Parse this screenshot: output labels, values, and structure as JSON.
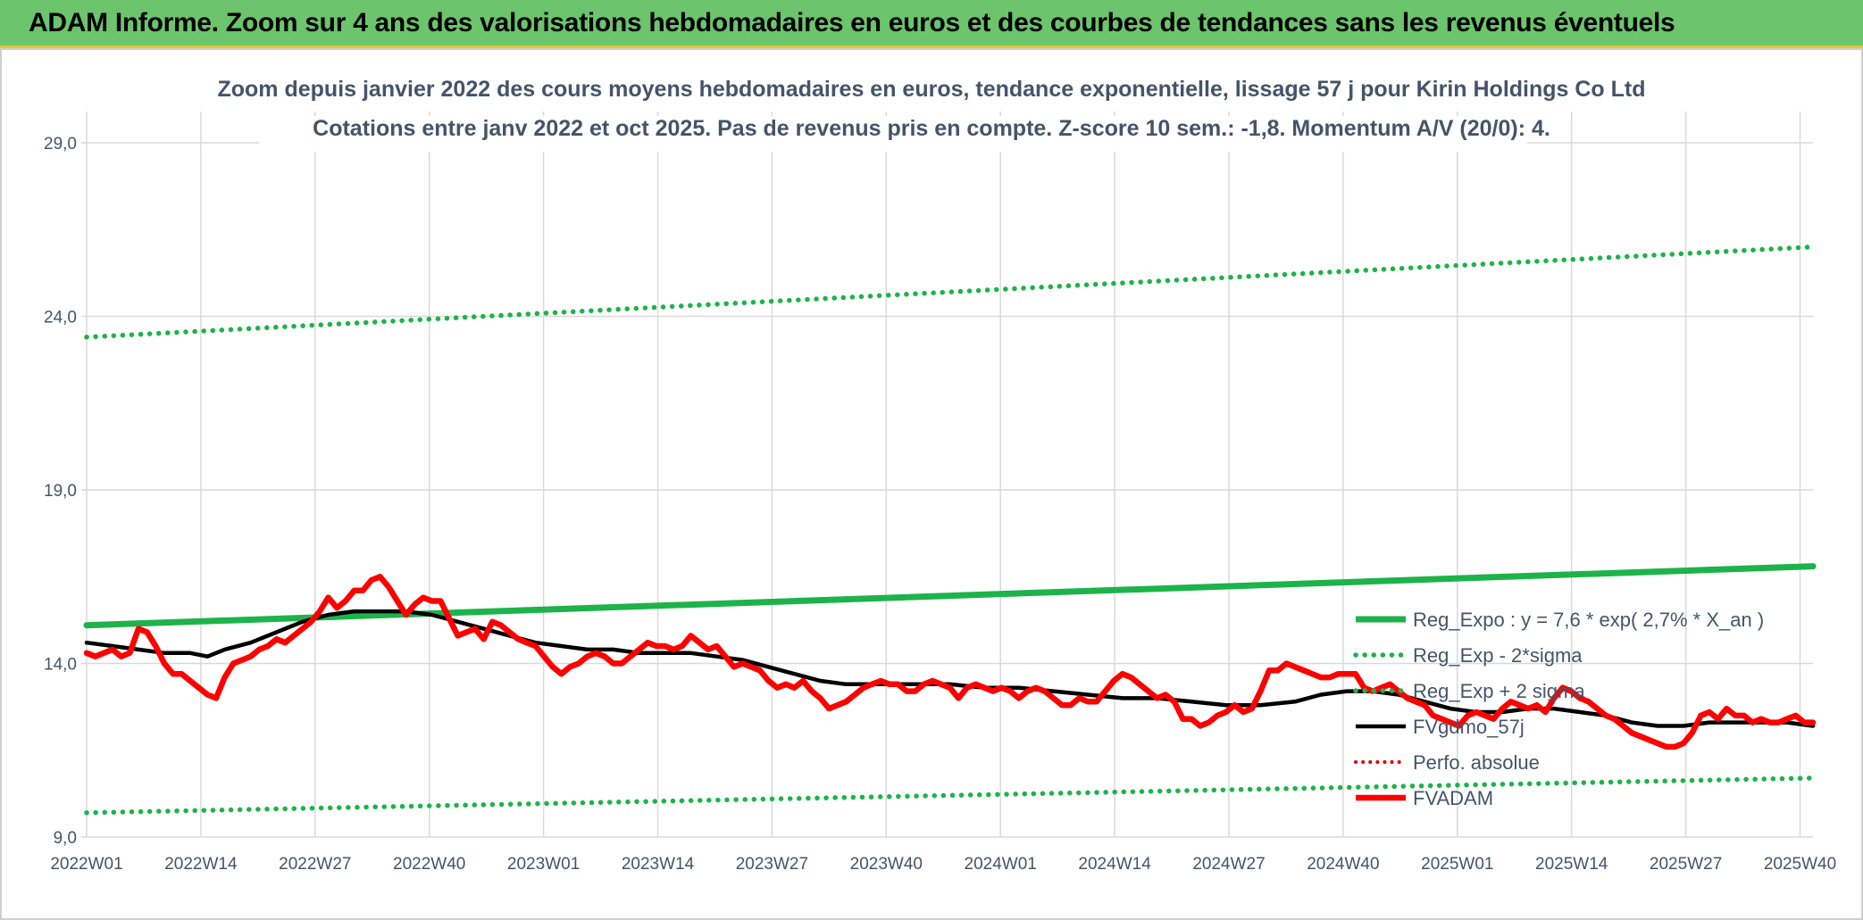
{
  "header": {
    "title": "ADAM Informe. Zoom sur 4 ans des valorisations hebdomadaires en euros et des courbes de tendances sans les revenus éventuels"
  },
  "chart_data": {
    "type": "line",
    "title_line1": "Zoom depuis janvier 2022 des cours moyens hebdomadaires en euros, tendance exponentielle, lissage 57 j pour Kirin Holdings Co Ltd",
    "title_line2": "Cotations entre janv 2022 et oct 2025. Pas de revenus pris en compte. Z-score 10 sem.: -1,8. Momentum A/V (20/0): 4.",
    "y_ticks": [
      "9,0",
      "14,0",
      "19,0",
      "24,0",
      "29,0"
    ],
    "ylim": [
      9,
      29
    ],
    "x_ticks": [
      "2022W01",
      "2022W14",
      "2022W27",
      "2022W40",
      "2023W01",
      "2023W14",
      "2023W27",
      "2023W40",
      "2024W01",
      "2024W14",
      "2024W27",
      "2024W40",
      "2025W01",
      "2025W14",
      "2025W27",
      "2025W40"
    ],
    "grid": true,
    "legend_position": "bottom-right",
    "series": [
      {
        "name": "Reg_Expo : y = 7,6 * exp( 2,7% *  X_an )",
        "color": "#1db34a",
        "style": "solid",
        "points": [
          [
            0,
            15.1
          ],
          [
            200,
            16.8
          ]
        ]
      },
      {
        "name": "Reg_Exp - 2*sigma",
        "color": "#1db34a",
        "style": "dotted",
        "points": [
          [
            0,
            9.7
          ],
          [
            200,
            10.7
          ]
        ]
      },
      {
        "name": "Reg_Exp + 2 sigma",
        "color": "#1db34a",
        "style": "dotted",
        "points": [
          [
            0,
            23.4
          ],
          [
            200,
            26.0
          ]
        ]
      },
      {
        "name": "FVgdmo_57j",
        "color": "#000000",
        "style": "solid",
        "points": [
          [
            0,
            14.6
          ],
          [
            3,
            14.5
          ],
          [
            6,
            14.4
          ],
          [
            9,
            14.3
          ],
          [
            12,
            14.3
          ],
          [
            14,
            14.2
          ],
          [
            16,
            14.4
          ],
          [
            19,
            14.6
          ],
          [
            22,
            14.9
          ],
          [
            25,
            15.2
          ],
          [
            28,
            15.4
          ],
          [
            31,
            15.5
          ],
          [
            34,
            15.5
          ],
          [
            37,
            15.5
          ],
          [
            40,
            15.4
          ],
          [
            43,
            15.2
          ],
          [
            46,
            15.0
          ],
          [
            49,
            14.8
          ],
          [
            52,
            14.6
          ],
          [
            55,
            14.5
          ],
          [
            58,
            14.4
          ],
          [
            61,
            14.4
          ],
          [
            64,
            14.3
          ],
          [
            67,
            14.3
          ],
          [
            70,
            14.3
          ],
          [
            73,
            14.2
          ],
          [
            76,
            14.1
          ],
          [
            79,
            13.9
          ],
          [
            82,
            13.7
          ],
          [
            85,
            13.5
          ],
          [
            88,
            13.4
          ],
          [
            92,
            13.4
          ],
          [
            96,
            13.4
          ],
          [
            100,
            13.4
          ],
          [
            104,
            13.3
          ],
          [
            108,
            13.3
          ],
          [
            112,
            13.2
          ],
          [
            116,
            13.1
          ],
          [
            120,
            13.0
          ],
          [
            124,
            13.0
          ],
          [
            128,
            12.9
          ],
          [
            132,
            12.8
          ],
          [
            136,
            12.8
          ],
          [
            140,
            12.9
          ],
          [
            143,
            13.1
          ],
          [
            146,
            13.2
          ],
          [
            149,
            13.2
          ],
          [
            152,
            13.1
          ],
          [
            155,
            12.9
          ],
          [
            158,
            12.7
          ],
          [
            161,
            12.6
          ],
          [
            164,
            12.6
          ],
          [
            167,
            12.7
          ],
          [
            170,
            12.7
          ],
          [
            173,
            12.6
          ],
          [
            176,
            12.5
          ],
          [
            179,
            12.3
          ],
          [
            182,
            12.2
          ],
          [
            185,
            12.2
          ],
          [
            188,
            12.3
          ],
          [
            191,
            12.3
          ],
          [
            194,
            12.3
          ],
          [
            197,
            12.3
          ],
          [
            200,
            12.2
          ]
        ]
      },
      {
        "name": "Perfo. absolue",
        "color": "#e00000",
        "style": "dotted",
        "points": []
      },
      {
        "name": "FVADAM",
        "color": "#ff0000",
        "style": "solid",
        "points": [
          [
            0,
            14.3
          ],
          [
            1,
            14.2
          ],
          [
            2,
            14.3
          ],
          [
            3,
            14.4
          ],
          [
            4,
            14.2
          ],
          [
            5,
            14.3
          ],
          [
            6,
            15.0
          ],
          [
            7,
            14.9
          ],
          [
            8,
            14.5
          ],
          [
            9,
            14.0
          ],
          [
            10,
            13.7
          ],
          [
            11,
            13.7
          ],
          [
            12,
            13.5
          ],
          [
            13,
            13.3
          ],
          [
            14,
            13.1
          ],
          [
            15,
            13.0
          ],
          [
            16,
            13.6
          ],
          [
            17,
            14.0
          ],
          [
            18,
            14.1
          ],
          [
            19,
            14.2
          ],
          [
            20,
            14.4
          ],
          [
            21,
            14.5
          ],
          [
            22,
            14.7
          ],
          [
            23,
            14.6
          ],
          [
            24,
            14.8
          ],
          [
            25,
            15.0
          ],
          [
            26,
            15.2
          ],
          [
            27,
            15.5
          ],
          [
            28,
            15.9
          ],
          [
            29,
            15.6
          ],
          [
            30,
            15.8
          ],
          [
            31,
            16.1
          ],
          [
            32,
            16.1
          ],
          [
            33,
            16.4
          ],
          [
            34,
            16.5
          ],
          [
            35,
            16.2
          ],
          [
            36,
            15.8
          ],
          [
            37,
            15.4
          ],
          [
            38,
            15.7
          ],
          [
            39,
            15.9
          ],
          [
            40,
            15.8
          ],
          [
            41,
            15.8
          ],
          [
            42,
            15.3
          ],
          [
            43,
            14.8
          ],
          [
            44,
            14.9
          ],
          [
            45,
            15.0
          ],
          [
            46,
            14.7
          ],
          [
            47,
            15.2
          ],
          [
            48,
            15.1
          ],
          [
            49,
            14.9
          ],
          [
            50,
            14.7
          ],
          [
            51,
            14.6
          ],
          [
            52,
            14.5
          ],
          [
            53,
            14.2
          ],
          [
            54,
            13.9
          ],
          [
            55,
            13.7
          ],
          [
            56,
            13.9
          ],
          [
            57,
            14.0
          ],
          [
            58,
            14.2
          ],
          [
            59,
            14.3
          ],
          [
            60,
            14.2
          ],
          [
            61,
            14.0
          ],
          [
            62,
            14.0
          ],
          [
            63,
            14.2
          ],
          [
            64,
            14.4
          ],
          [
            65,
            14.6
          ],
          [
            66,
            14.5
          ],
          [
            67,
            14.5
          ],
          [
            68,
            14.4
          ],
          [
            69,
            14.5
          ],
          [
            70,
            14.8
          ],
          [
            71,
            14.6
          ],
          [
            72,
            14.4
          ],
          [
            73,
            14.5
          ],
          [
            74,
            14.2
          ],
          [
            75,
            13.9
          ],
          [
            76,
            14.0
          ],
          [
            77,
            13.9
          ],
          [
            78,
            13.8
          ],
          [
            79,
            13.5
          ],
          [
            80,
            13.3
          ],
          [
            81,
            13.4
          ],
          [
            82,
            13.3
          ],
          [
            83,
            13.5
          ],
          [
            84,
            13.2
          ],
          [
            85,
            13.0
          ],
          [
            86,
            12.7
          ],
          [
            87,
            12.8
          ],
          [
            88,
            12.9
          ],
          [
            89,
            13.1
          ],
          [
            90,
            13.3
          ],
          [
            91,
            13.4
          ],
          [
            92,
            13.5
          ],
          [
            93,
            13.4
          ],
          [
            94,
            13.4
          ],
          [
            95,
            13.2
          ],
          [
            96,
            13.2
          ],
          [
            97,
            13.4
          ],
          [
            98,
            13.5
          ],
          [
            99,
            13.4
          ],
          [
            100,
            13.3
          ],
          [
            101,
            13.0
          ],
          [
            102,
            13.3
          ],
          [
            103,
            13.4
          ],
          [
            104,
            13.3
          ],
          [
            105,
            13.2
          ],
          [
            106,
            13.3
          ],
          [
            107,
            13.2
          ],
          [
            108,
            13.0
          ],
          [
            109,
            13.2
          ],
          [
            110,
            13.3
          ],
          [
            111,
            13.2
          ],
          [
            112,
            13.0
          ],
          [
            113,
            12.8
          ],
          [
            114,
            12.8
          ],
          [
            115,
            13.0
          ],
          [
            116,
            12.9
          ],
          [
            117,
            12.9
          ],
          [
            118,
            13.2
          ],
          [
            119,
            13.5
          ],
          [
            120,
            13.7
          ],
          [
            121,
            13.6
          ],
          [
            122,
            13.4
          ],
          [
            123,
            13.2
          ],
          [
            124,
            13.0
          ],
          [
            125,
            13.1
          ],
          [
            126,
            12.9
          ],
          [
            127,
            12.4
          ],
          [
            128,
            12.4
          ],
          [
            129,
            12.2
          ],
          [
            130,
            12.3
          ],
          [
            131,
            12.5
          ],
          [
            132,
            12.6
          ],
          [
            133,
            12.8
          ],
          [
            134,
            12.6
          ],
          [
            135,
            12.7
          ],
          [
            136,
            13.2
          ],
          [
            137,
            13.8
          ],
          [
            138,
            13.8
          ],
          [
            139,
            14.0
          ],
          [
            140,
            13.9
          ],
          [
            141,
            13.8
          ],
          [
            142,
            13.7
          ],
          [
            143,
            13.6
          ],
          [
            144,
            13.6
          ],
          [
            145,
            13.7
          ],
          [
            146,
            13.7
          ],
          [
            147,
            13.7
          ],
          [
            148,
            13.3
          ],
          [
            149,
            13.2
          ],
          [
            150,
            13.3
          ],
          [
            151,
            13.4
          ],
          [
            152,
            13.2
          ],
          [
            153,
            13.0
          ],
          [
            154,
            12.9
          ],
          [
            155,
            12.8
          ],
          [
            156,
            12.5
          ],
          [
            157,
            12.4
          ],
          [
            158,
            12.3
          ],
          [
            159,
            12.2
          ],
          [
            160,
            12.5
          ],
          [
            161,
            12.6
          ],
          [
            162,
            12.5
          ],
          [
            163,
            12.4
          ],
          [
            164,
            12.7
          ],
          [
            165,
            12.9
          ],
          [
            166,
            12.8
          ],
          [
            167,
            12.7
          ],
          [
            168,
            12.8
          ],
          [
            169,
            12.6
          ],
          [
            170,
            13.0
          ],
          [
            171,
            13.3
          ],
          [
            172,
            13.2
          ],
          [
            173,
            13.0
          ],
          [
            174,
            12.9
          ],
          [
            175,
            12.7
          ],
          [
            176,
            12.5
          ],
          [
            177,
            12.4
          ],
          [
            178,
            12.2
          ],
          [
            179,
            12.0
          ],
          [
            180,
            11.9
          ],
          [
            181,
            11.8
          ],
          [
            182,
            11.7
          ],
          [
            183,
            11.6
          ],
          [
            184,
            11.6
          ],
          [
            185,
            11.7
          ],
          [
            186,
            12.0
          ],
          [
            187,
            12.5
          ],
          [
            188,
            12.6
          ],
          [
            189,
            12.4
          ],
          [
            190,
            12.7
          ],
          [
            191,
            12.5
          ],
          [
            192,
            12.5
          ],
          [
            193,
            12.3
          ],
          [
            194,
            12.4
          ],
          [
            195,
            12.3
          ],
          [
            196,
            12.3
          ],
          [
            197,
            12.4
          ],
          [
            198,
            12.5
          ],
          [
            199,
            12.3
          ],
          [
            200,
            12.3
          ]
        ]
      }
    ]
  }
}
